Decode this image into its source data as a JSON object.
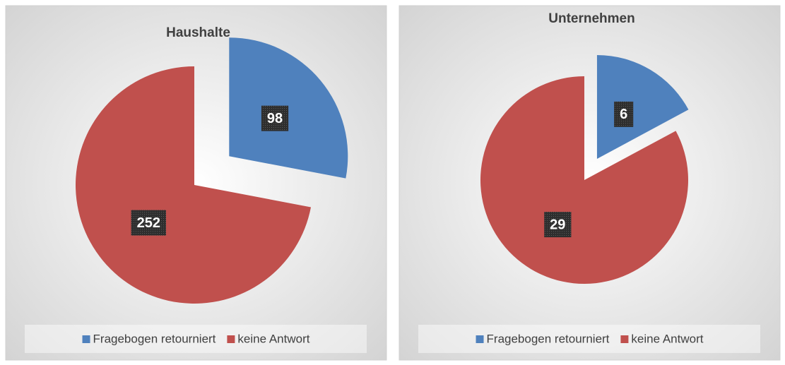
{
  "chart_data": [
    {
      "type": "pie",
      "title": "Haushalte",
      "categories": [
        "Fragebogen retourniert",
        "keine Antwort"
      ],
      "values": [
        98,
        252
      ],
      "colors": [
        "#4f81bd",
        "#c0504d"
      ]
    },
    {
      "type": "pie",
      "title": "Unternehmen",
      "categories": [
        "Fragebogen retourniert",
        "keine Antwort"
      ],
      "values": [
        6,
        29
      ],
      "colors": [
        "#4f81bd",
        "#c0504d"
      ]
    }
  ]
}
